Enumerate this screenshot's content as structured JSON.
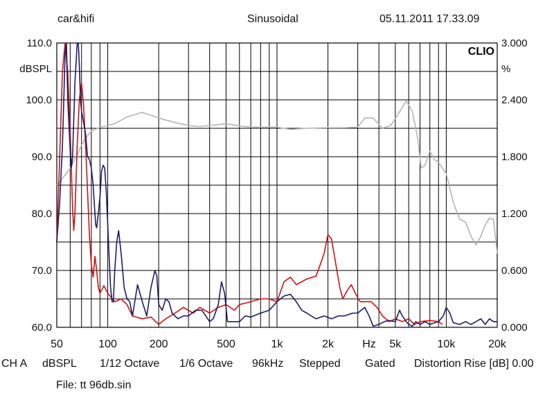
{
  "header": {
    "left": "car&hifi",
    "center": "Sinusoidal",
    "right": "05.11.2011 17.33.09"
  },
  "footer": {
    "items": [
      "CH A",
      "dBSPL",
      "1/12 Octave",
      "1/6 Octave",
      "96kHz",
      "Stepped",
      "Gated",
      "Distortion Rise [dB] 0.00"
    ],
    "file": "File: tt 96db.sin"
  },
  "chart_data": {
    "type": "line",
    "logo": "CLIO",
    "x_scale": "log",
    "xlim": [
      50,
      20000
    ],
    "x_ticks": [
      {
        "value": 50,
        "label": "50"
      },
      {
        "value": 100,
        "label": "100"
      },
      {
        "value": 200,
        "label": "200"
      },
      {
        "value": 500,
        "label": "500"
      },
      {
        "value": 1000,
        "label": "1k"
      },
      {
        "value": 2000,
        "label": "2k"
      },
      {
        "value": 3500,
        "label": "Hz"
      },
      {
        "value": 5000,
        "label": "5k"
      },
      {
        "value": 10000,
        "label": "10k"
      },
      {
        "value": 20000,
        "label": "20k"
      }
    ],
    "ylabel_left": "dBSPL",
    "ylim_left": [
      60,
      110
    ],
    "y_ticks_left": [
      "60.0",
      "70.0",
      "80.0",
      "90.0",
      "100.0",
      "110.0"
    ],
    "ylabel_right": "%",
    "ylim_right": [
      0,
      3
    ],
    "y_ticks_right": [
      "0.000",
      "0.600",
      "1.200",
      "1.800",
      "2.400",
      "3.000"
    ],
    "grid": true,
    "series": [
      {
        "color": "#b4b4b4",
        "axis": "left",
        "points": [
          [
            50,
            85
          ],
          [
            55,
            86.5
          ],
          [
            60,
            88
          ],
          [
            65,
            90
          ],
          [
            70,
            92
          ],
          [
            75,
            93.5
          ],
          [
            80,
            94.5
          ],
          [
            90,
            95.2
          ],
          [
            100,
            95.5
          ],
          [
            110,
            95.8
          ],
          [
            130,
            97
          ],
          [
            160,
            97.8
          ],
          [
            200,
            96.8
          ],
          [
            250,
            96
          ],
          [
            300,
            95.5
          ],
          [
            350,
            95.3
          ],
          [
            400,
            95.5
          ],
          [
            500,
            95.8
          ],
          [
            600,
            95.4
          ],
          [
            700,
            95.2
          ],
          [
            800,
            95.2
          ],
          [
            1000,
            95.2
          ],
          [
            1200,
            94.8
          ],
          [
            1500,
            95
          ],
          [
            2000,
            95.1
          ],
          [
            2500,
            95.1
          ],
          [
            3000,
            95.2
          ],
          [
            3300,
            96.8
          ],
          [
            3700,
            96.8
          ],
          [
            4200,
            95
          ],
          [
            4700,
            95.5
          ],
          [
            5200,
            97.5
          ],
          [
            5800,
            99.8
          ],
          [
            6300,
            98
          ],
          [
            6800,
            93
          ],
          [
            7100,
            88
          ],
          [
            7500,
            88.5
          ],
          [
            8000,
            91
          ],
          [
            8500,
            89.5
          ],
          [
            9000,
            89
          ],
          [
            10000,
            87
          ],
          [
            11000,
            82
          ],
          [
            12000,
            79
          ],
          [
            13000,
            78.5
          ],
          [
            14000,
            76
          ],
          [
            15000,
            74.5
          ],
          [
            16000,
            76
          ],
          [
            17000,
            78
          ],
          [
            18000,
            79.2
          ],
          [
            19000,
            79
          ],
          [
            20000,
            73
          ]
        ]
      },
      {
        "color": "#cc1111",
        "axis": "left",
        "points": [
          [
            50,
            75
          ],
          [
            52,
            90
          ],
          [
            54,
            105
          ],
          [
            56,
            112
          ],
          [
            58,
            105
          ],
          [
            60,
            94
          ],
          [
            62,
            81
          ],
          [
            63,
            77
          ],
          [
            64,
            80
          ],
          [
            66,
            92
          ],
          [
            68,
            100
          ],
          [
            70,
            103
          ],
          [
            72,
            99
          ],
          [
            74,
            92
          ],
          [
            76,
            84
          ],
          [
            78,
            76
          ],
          [
            80,
            71
          ],
          [
            82,
            68.8
          ],
          [
            84,
            72.5
          ],
          [
            86,
            70
          ],
          [
            88,
            67
          ],
          [
            90,
            66
          ],
          [
            95,
            67.3
          ],
          [
            100,
            66
          ],
          [
            110,
            64.5
          ],
          [
            120,
            65
          ],
          [
            130,
            64
          ],
          [
            140,
            62
          ],
          [
            160,
            61.5
          ],
          [
            180,
            61.8
          ],
          [
            200,
            60.5
          ],
          [
            220,
            61.5
          ],
          [
            250,
            62.5
          ],
          [
            280,
            63.5
          ],
          [
            320,
            62.5
          ],
          [
            350,
            63.5
          ],
          [
            400,
            62.5
          ],
          [
            450,
            63.5
          ],
          [
            500,
            64
          ],
          [
            560,
            63
          ],
          [
            600,
            64
          ],
          [
            700,
            64.5
          ],
          [
            800,
            65
          ],
          [
            900,
            65
          ],
          [
            1000,
            64.5
          ],
          [
            1100,
            68
          ],
          [
            1200,
            68.8
          ],
          [
            1300,
            67.5
          ],
          [
            1500,
            68.5
          ],
          [
            1700,
            69
          ],
          [
            1800,
            71
          ],
          [
            1900,
            73
          ],
          [
            2000,
            76.3
          ],
          [
            2100,
            75.5
          ],
          [
            2200,
            72
          ],
          [
            2350,
            67
          ],
          [
            2450,
            65
          ],
          [
            2600,
            66.5
          ],
          [
            2750,
            67.5
          ],
          [
            2900,
            66
          ],
          [
            3100,
            64.5
          ],
          [
            3300,
            64.5
          ],
          [
            3600,
            64.5
          ],
          [
            3900,
            63.5
          ],
          [
            4200,
            62
          ],
          [
            4600,
            61
          ],
          [
            5000,
            61.5
          ],
          [
            5500,
            61
          ],
          [
            6000,
            61.5
          ],
          [
            6500,
            60.5
          ],
          [
            7000,
            61
          ],
          [
            8000,
            61.2
          ],
          [
            9000,
            61
          ],
          [
            9500,
            60.5
          ]
        ]
      },
      {
        "color": "#1a1a6a",
        "axis": "left",
        "points": [
          [
            50,
            75
          ],
          [
            52,
            82
          ],
          [
            54,
            92
          ],
          [
            55,
            100
          ],
          [
            56,
            108
          ],
          [
            57,
            112
          ],
          [
            58,
            100
          ],
          [
            60,
            91
          ],
          [
            61,
            88
          ],
          [
            62,
            90
          ],
          [
            64,
            103
          ],
          [
            66,
            112
          ],
          [
            67,
            112
          ],
          [
            68,
            106
          ],
          [
            69,
            100
          ],
          [
            70,
            98
          ],
          [
            72,
            96
          ],
          [
            74,
            94
          ],
          [
            76,
            90
          ],
          [
            78,
            89.5
          ],
          [
            80,
            88
          ],
          [
            82,
            85
          ],
          [
            84,
            80
          ],
          [
            85,
            78
          ],
          [
            86,
            77.5
          ],
          [
            88,
            80
          ],
          [
            90,
            83
          ],
          [
            92,
            87.5
          ],
          [
            94,
            88.5
          ],
          [
            96,
            88
          ],
          [
            98,
            84
          ],
          [
            100,
            78
          ],
          [
            102,
            72
          ],
          [
            104,
            67
          ],
          [
            106,
            64.5
          ],
          [
            108,
            64.5
          ],
          [
            110,
            70
          ],
          [
            113,
            75
          ],
          [
            116,
            77
          ],
          [
            120,
            73
          ],
          [
            125,
            67
          ],
          [
            130,
            65
          ],
          [
            135,
            64.5
          ],
          [
            140,
            62
          ],
          [
            150,
            67.5
          ],
          [
            160,
            64.5
          ],
          [
            170,
            62
          ],
          [
            180,
            67
          ],
          [
            190,
            70
          ],
          [
            195,
            69
          ],
          [
            200,
            64
          ],
          [
            210,
            63
          ],
          [
            220,
            65
          ],
          [
            230,
            64.5
          ],
          [
            240,
            62.5
          ],
          [
            260,
            61.5
          ],
          [
            280,
            62
          ],
          [
            300,
            62
          ],
          [
            330,
            63
          ],
          [
            360,
            63
          ],
          [
            400,
            61
          ],
          [
            420,
            61.5
          ],
          [
            450,
            64
          ],
          [
            470,
            68
          ],
          [
            490,
            66
          ],
          [
            510,
            61
          ],
          [
            550,
            61
          ],
          [
            600,
            61
          ],
          [
            650,
            62
          ],
          [
            700,
            61.8
          ],
          [
            800,
            62.5
          ],
          [
            900,
            63
          ],
          [
            1000,
            64.5
          ],
          [
            1100,
            65.5
          ],
          [
            1200,
            65.8
          ],
          [
            1300,
            64.5
          ],
          [
            1400,
            63
          ],
          [
            1500,
            62.5
          ],
          [
            1700,
            61.5
          ],
          [
            1900,
            62
          ],
          [
            2100,
            61.5
          ],
          [
            2300,
            62
          ],
          [
            2500,
            62
          ],
          [
            2800,
            62.5
          ],
          [
            3000,
            62.5
          ],
          [
            3300,
            63.5
          ],
          [
            3500,
            62
          ],
          [
            3700,
            60.2
          ],
          [
            4000,
            60.5
          ],
          [
            4300,
            61
          ],
          [
            4600,
            61.2
          ],
          [
            5000,
            61
          ],
          [
            5300,
            63
          ],
          [
            5500,
            62
          ],
          [
            5800,
            61
          ],
          [
            6000,
            60.5
          ],
          [
            6300,
            60.2
          ],
          [
            6600,
            61
          ],
          [
            7000,
            60.5
          ],
          [
            7500,
            61
          ],
          [
            8000,
            60.5
          ],
          [
            9000,
            61
          ],
          [
            9600,
            62
          ],
          [
            10000,
            63.5
          ],
          [
            10500,
            62.5
          ],
          [
            11000,
            60.8
          ],
          [
            12000,
            60.5
          ],
          [
            13000,
            61
          ],
          [
            14000,
            60.5
          ],
          [
            15000,
            61
          ],
          [
            16000,
            61.5
          ],
          [
            17000,
            60.5
          ],
          [
            18000,
            61.5
          ],
          [
            19000,
            61
          ],
          [
            20000,
            61
          ]
        ]
      }
    ]
  }
}
